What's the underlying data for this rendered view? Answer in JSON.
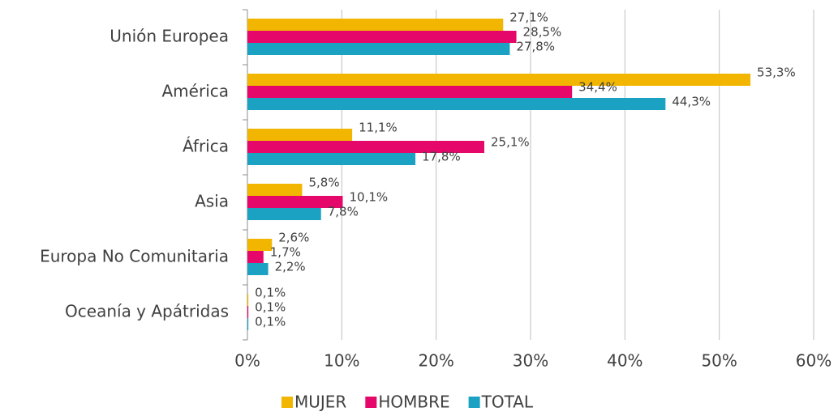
{
  "chart_data": {
    "type": "hbar",
    "categories": [
      "Unión Europea",
      "América",
      "África",
      "Asia",
      "Europa No Comunitaria",
      "Oceanía y Apátridas"
    ],
    "series": [
      {
        "name": "MUJER",
        "color": "#f2b600",
        "values": [
          27.1,
          53.3,
          11.1,
          5.8,
          2.6,
          0.1
        ],
        "value_labels": [
          "27,1%",
          "53,3%",
          "11,1%",
          "5,8%",
          "2,6%",
          "0,1%"
        ]
      },
      {
        "name": "HOMBRE",
        "color": "#e5086a",
        "values": [
          28.5,
          34.4,
          25.1,
          10.1,
          1.7,
          0.1
        ],
        "value_labels": [
          "28,5%",
          "34,4%",
          "25,1%",
          "10,1%",
          "1,7%",
          "0,1%"
        ]
      },
      {
        "name": "TOTAL",
        "color": "#1ba1c2",
        "values": [
          27.8,
          44.3,
          17.8,
          7.8,
          2.2,
          0.1
        ],
        "value_labels": [
          "27,8%",
          "44,3%",
          "17,8%",
          "7,8%",
          "2,2%",
          "0,1%"
        ]
      }
    ],
    "xlim": [
      0,
      60
    ],
    "xticks": [
      {
        "value": 0,
        "label": "0%"
      },
      {
        "value": 10,
        "label": "10%"
      },
      {
        "value": 20,
        "label": "20%"
      },
      {
        "value": 30,
        "label": "30%"
      },
      {
        "value": 40,
        "label": "40%"
      },
      {
        "value": 50,
        "label": "50%"
      },
      {
        "value": 60,
        "label": "60%"
      }
    ],
    "grid": true,
    "legend": "bottom"
  }
}
